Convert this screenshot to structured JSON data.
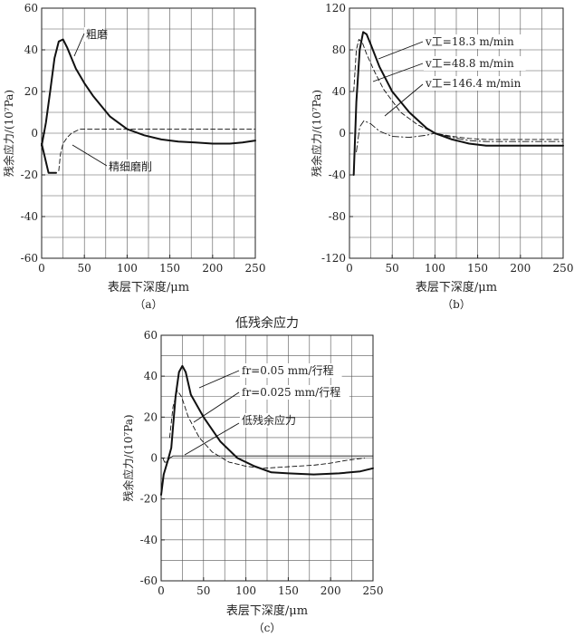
{
  "chart_data": [
    {
      "type": "line",
      "panel_label": "（a）",
      "title": "",
      "xlabel": "表层下深度/μm",
      "ylabel": "残余应力/(10⁷Pa)",
      "xlim": [
        0,
        250
      ],
      "ylim": [
        -60,
        60
      ],
      "xticks": [
        0,
        50,
        100,
        150,
        200,
        250
      ],
      "yticks": [
        -60,
        -40,
        -20,
        0,
        20,
        40,
        60
      ],
      "grid": true,
      "series": [
        {
          "name": "粗磨",
          "style": "solid-thick",
          "points": [
            [
              0,
              -6
            ],
            [
              5,
              5
            ],
            [
              10,
              20
            ],
            [
              15,
              36
            ],
            [
              20,
              44
            ],
            [
              25,
              45
            ],
            [
              30,
              41
            ],
            [
              40,
              31
            ],
            [
              50,
              24
            ],
            [
              60,
              18
            ],
            [
              80,
              8
            ],
            [
              100,
              2
            ],
            [
              120,
              -1
            ],
            [
              140,
              -3
            ],
            [
              160,
              -4
            ],
            [
              180,
              -4.5
            ],
            [
              200,
              -5
            ],
            [
              220,
              -5
            ],
            [
              235,
              -4.5
            ],
            [
              250,
              -3.5
            ]
          ]
        },
        {
          "name": "精细磨削",
          "style": "dashed",
          "points": [
            [
              20,
              -18
            ],
            [
              22,
              -10
            ],
            [
              25,
              -5
            ],
            [
              30,
              -2
            ],
            [
              35,
              0
            ],
            [
              45,
              2
            ],
            [
              55,
              2
            ],
            [
              250,
              2
            ]
          ]
        },
        {
          "name": "",
          "style": "solid-thick",
          "points": [
            [
              0,
              -5
            ],
            [
              4,
              -12
            ],
            [
              8,
              -19
            ],
            [
              17,
              -19
            ]
          ]
        }
      ]
    },
    {
      "type": "line",
      "panel_label": "（b）",
      "title": "",
      "xlabel": "表层下深度/μm",
      "ylabel": "残余应力/(10⁷Pa)",
      "xlim": [
        0,
        250
      ],
      "ylim": [
        -120,
        120
      ],
      "xticks": [
        0,
        50,
        100,
        150,
        200,
        250
      ],
      "yticks": [
        -120,
        -80,
        -40,
        0,
        40,
        80,
        120
      ],
      "grid": true,
      "series": [
        {
          "name": "v工=18.3 m/min",
          "style": "solid-thick",
          "points": [
            [
              5,
              -40
            ],
            [
              8,
              30
            ],
            [
              12,
              80
            ],
            [
              16,
              97
            ],
            [
              20,
              95
            ],
            [
              25,
              85
            ],
            [
              35,
              64
            ],
            [
              50,
              40
            ],
            [
              70,
              20
            ],
            [
              90,
              5
            ],
            [
              100,
              0
            ],
            [
              120,
              -6
            ],
            [
              140,
              -10
            ],
            [
              160,
              -12
            ],
            [
              250,
              -12
            ]
          ]
        },
        {
          "name": "v工=48.8 m/min",
          "style": "dashed",
          "points": [
            [
              5,
              40
            ],
            [
              8,
              80
            ],
            [
              11,
              90
            ],
            [
              15,
              87
            ],
            [
              20,
              76
            ],
            [
              30,
              58
            ],
            [
              40,
              42
            ],
            [
              60,
              20
            ],
            [
              80,
              8
            ],
            [
              100,
              0
            ],
            [
              120,
              -3
            ],
            [
              140,
              -5
            ],
            [
              160,
              -6
            ],
            [
              250,
              -6
            ]
          ]
        },
        {
          "name": "v工=146.4 m/min",
          "style": "dash-dot",
          "points": [
            [
              8,
              -18
            ],
            [
              12,
              6
            ],
            [
              17,
              12
            ],
            [
              25,
              9
            ],
            [
              35,
              2
            ],
            [
              50,
              -3
            ],
            [
              70,
              -4
            ],
            [
              90,
              -2
            ],
            [
              100,
              0
            ],
            [
              120,
              -4
            ],
            [
              140,
              -7
            ],
            [
              160,
              -8
            ],
            [
              250,
              -8
            ]
          ]
        }
      ]
    },
    {
      "type": "line",
      "panel_label": "（c）",
      "title": "低残余应力",
      "xlabel": "表层下深度/μm",
      "ylabel": "残余应力/(10⁷Pa)",
      "xlim": [
        0,
        250
      ],
      "ylim": [
        -60,
        60
      ],
      "xticks": [
        0,
        50,
        100,
        150,
        200,
        250
      ],
      "yticks": [
        -60,
        -40,
        -20,
        0,
        20,
        40,
        60
      ],
      "grid": true,
      "series": [
        {
          "name": "fr=0.05 mm/行程",
          "style": "solid-thick",
          "points": [
            [
              0,
              -18
            ],
            [
              3,
              -8
            ],
            [
              8,
              -1
            ],
            [
              12,
              5
            ],
            [
              17,
              30
            ],
            [
              21,
              42
            ],
            [
              25,
              45
            ],
            [
              29,
              42
            ],
            [
              35,
              31
            ],
            [
              50,
              20
            ],
            [
              70,
              8
            ],
            [
              90,
              0
            ],
            [
              110,
              -4
            ],
            [
              130,
              -7
            ],
            [
              150,
              -7.5
            ],
            [
              180,
              -8
            ],
            [
              210,
              -7.5
            ],
            [
              235,
              -6.5
            ],
            [
              250,
              -5
            ]
          ]
        },
        {
          "name": "fr=0.025 mm/行程",
          "style": "dashed",
          "points": [
            [
              10,
              10
            ],
            [
              14,
              25
            ],
            [
              19,
              33
            ],
            [
              24,
              30
            ],
            [
              32,
              20
            ],
            [
              45,
              10
            ],
            [
              60,
              3
            ],
            [
              80,
              -2
            ],
            [
              100,
              -4
            ],
            [
              120,
              -5
            ],
            [
              140,
              -4.5
            ],
            [
              160,
              -4
            ],
            [
              180,
              -3.5
            ],
            [
              200,
              -2.5
            ],
            [
              220,
              -1
            ],
            [
              240,
              0
            ]
          ]
        },
        {
          "name": "低残余应力",
          "style": "solid-thin",
          "points": [
            [
              2,
              0
            ],
            [
              4,
              -2
            ],
            [
              7,
              -2
            ],
            [
              10,
              0
            ],
            [
              14,
              1
            ],
            [
              250,
              1
            ]
          ]
        }
      ]
    }
  ]
}
